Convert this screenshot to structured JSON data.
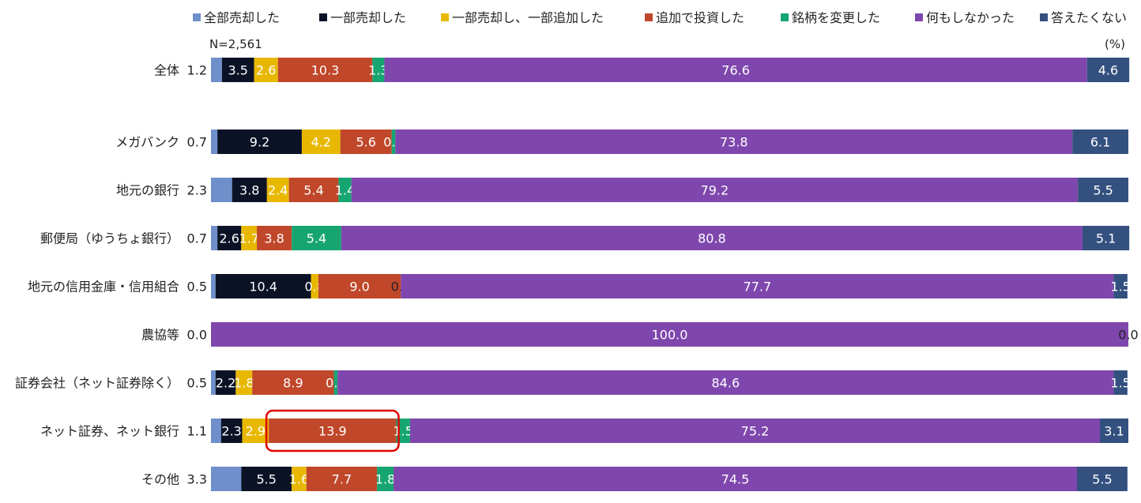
{
  "chart_data": {
    "type": "bar",
    "orientation": "horizontal",
    "stacked": true,
    "note_left": "N=2,561",
    "unit": "(%)",
    "legend_position": "top",
    "grid": false,
    "xlim": [
      0,
      100
    ],
    "categories": [
      "全体",
      "メガバンク",
      "地元の銀行",
      "郵便局（ゆうちょ銀行）",
      "地元の信用金庫・信用組合",
      "農協等",
      "証券会社（ネット証券除く）",
      "ネット証券、ネット銀行",
      "その他"
    ],
    "series": [
      {
        "name": "全部売却した",
        "color": "#6f8fcb",
        "values": [
          1.2,
          0.7,
          2.3,
          0.7,
          0.5,
          0.0,
          0.5,
          1.1,
          3.3
        ]
      },
      {
        "name": "一部売却した",
        "color": "#0b1226",
        "values": [
          3.5,
          9.2,
          3.8,
          2.6,
          10.4,
          0.0,
          2.2,
          2.3,
          5.5
        ]
      },
      {
        "name": "一部売却し、一部追加した",
        "color": "#e8b800",
        "values": [
          2.6,
          4.2,
          2.4,
          1.7,
          0.8,
          0.0,
          1.8,
          2.9,
          1.6
        ]
      },
      {
        "name": "追加で投資した",
        "color": "#c0472a",
        "values": [
          10.3,
          5.6,
          5.4,
          3.8,
          9.0,
          0.0,
          8.9,
          13.9,
          7.7
        ]
      },
      {
        "name": "銘柄を変更した",
        "color": "#16a571",
        "values": [
          1.3,
          0.4,
          1.4,
          5.4,
          0.0,
          0.0,
          0.4,
          1.5,
          1.8
        ]
      },
      {
        "name": "何もしなかった",
        "color": "#7f47ad",
        "values": [
          76.6,
          73.8,
          79.2,
          80.8,
          77.7,
          100.0,
          84.6,
          75.2,
          74.5
        ]
      },
      {
        "name": "答えたくない",
        "color": "#33507f",
        "values": [
          4.6,
          6.1,
          5.5,
          5.1,
          1.5,
          0.0,
          1.5,
          3.1,
          5.5
        ]
      }
    ],
    "labels": [
      [
        "1.2",
        "3.5",
        "2.6",
        "10.3",
        "1.3",
        "76.6",
        "4.6"
      ],
      [
        "0.7",
        "9.2",
        "4.2",
        "5.6",
        "0.4",
        "73.8",
        "6.1"
      ],
      [
        "2.3",
        "3.8",
        "2.4",
        "5.4",
        "1.4",
        "79.2",
        "5.5"
      ],
      [
        "0.7",
        "2.6",
        "1.7",
        "3.8",
        "5.4",
        "80.8",
        "5.1"
      ],
      [
        "0.5",
        "10.4",
        "0.8",
        "9.0",
        "0.0",
        "77.7",
        "1.5"
      ],
      [
        "0.0",
        "",
        "",
        "",
        "",
        "100.0",
        "0.0"
      ],
      [
        "0.5",
        "2.2",
        "1.8",
        "8.9",
        "0.4",
        "84.6",
        "1.5"
      ],
      [
        "1.1",
        "2.3",
        "2.9",
        "13.9",
        "1.5",
        "75.2",
        "3.1"
      ],
      [
        "3.3",
        "5.5",
        "1.6",
        "7.7",
        "1.8",
        "74.5",
        "5.5"
      ]
    ],
    "highlight": {
      "category_index": 7,
      "series_index": 3,
      "color": "#e00000"
    }
  }
}
